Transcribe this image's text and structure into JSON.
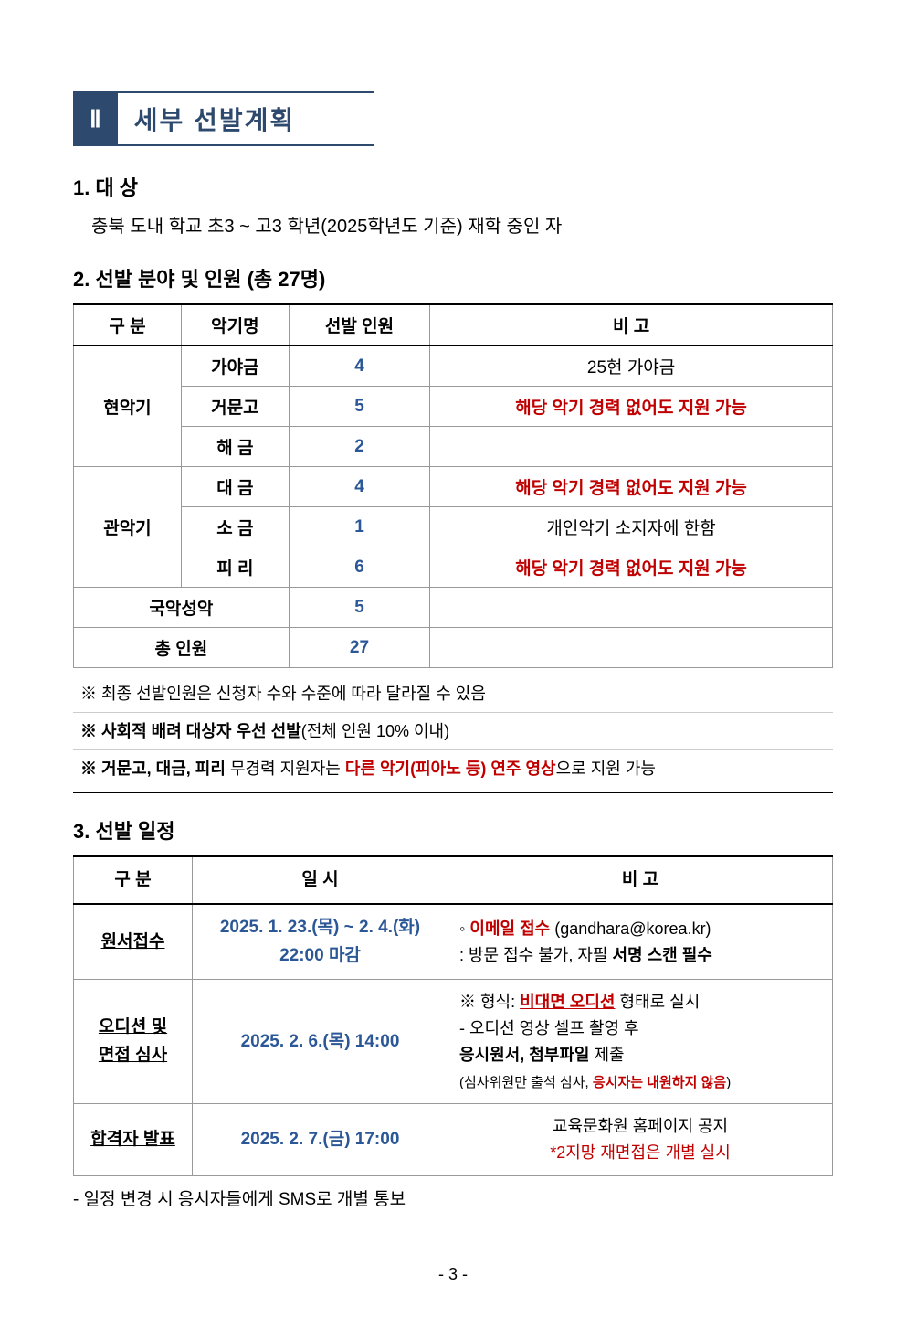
{
  "header": {
    "roman": "Ⅱ",
    "title": "세부 선발계획"
  },
  "section1": {
    "title": "1. 대 상",
    "text": "충북 도내 학교 초3 ~ 고3 학년(2025학년도 기준) 재학 중인 자"
  },
  "section2": {
    "title": "2. 선발 분야 및 인원 (총 27명)",
    "table": {
      "headers": [
        "구  분",
        "악기명",
        "선발 인원",
        "비  고"
      ],
      "categories": [
        {
          "name": "현악기",
          "rowspan": 3
        },
        {
          "name": "관악기",
          "rowspan": 3
        }
      ],
      "rows": [
        {
          "category": "현악기",
          "inst": "가야금",
          "count": "4",
          "note": "25현 가야금",
          "noteRed": false
        },
        {
          "category": "",
          "inst": "거문고",
          "count": "5",
          "note": "해당 악기 경력 없어도 지원 가능",
          "noteRed": true
        },
        {
          "category": "",
          "inst": "해 금",
          "count": "2",
          "note": "",
          "noteRed": false
        },
        {
          "category": "관악기",
          "inst": "대 금",
          "count": "4",
          "note": "해당 악기 경력 없어도 지원 가능",
          "noteRed": true
        },
        {
          "category": "",
          "inst": "소 금",
          "count": "1",
          "note": "개인악기 소지자에 한함",
          "noteRed": false
        },
        {
          "category": "",
          "inst": "피 리",
          "count": "6",
          "note": "해당 악기 경력 없어도 지원 가능",
          "noteRed": true
        }
      ],
      "merged1": {
        "label": "국악성악",
        "count": "5",
        "note": ""
      },
      "merged2": {
        "label": "총 인원",
        "count": "27",
        "note": ""
      }
    },
    "notes": {
      "l1": "※ 최종 선발인원은 신청자 수와 수준에 따라 달라질 수 있음",
      "l2a": "※ 사회적 배려 대상자 우선 선발",
      "l2b": "(전체 인원 10% 이내)",
      "l3a": "※ 거문고, 대금, 피리",
      "l3b": " 무경력 지원자는 ",
      "l3c": "다른 악기(피아노 등) 연주 영상",
      "l3d": "으로 지원 가능"
    }
  },
  "section3": {
    "title": "3. 선발 일정",
    "headers": [
      "구 분",
      "일 시",
      "비 고"
    ],
    "rows": [
      {
        "label": "원서접수",
        "date": "2025. 1. 23.(목) ~ 2. 4.(화)\n22:00 마감",
        "remark": {
          "prefix": "◦ ",
          "red1": "이메일 접수",
          "plain1": " (gandhara@korea.kr)",
          "line2a": ": 방문 접수 불가, 자필 ",
          "line2b": "서명 스캔 필수"
        }
      },
      {
        "label": "오디션 및\n면접 심사",
        "date": "2025. 2. 6.(목) 14:00",
        "remark": {
          "l1a": "※ 형식: ",
          "l1b": "비대면 오디션",
          "l1c": " 형태로 실시",
          "l2": "   - 오디션 영상 셀프 촬영 후",
          "l3a": "     ",
          "l3b": "응시원서, 첨부파일",
          "l3c": " 제출",
          "l4a": "(심사위원만 출석 심사, ",
          "l4b": "응시자는 내원하지 않음",
          "l4c": ")"
        }
      },
      {
        "label": "합격자 발표",
        "date": "2025. 2. 7.(금) 17:00",
        "remark": {
          "l1": "교육문화원 홈페이지 공지",
          "l2": "*2지망 재면접은 개별 실시"
        }
      }
    ],
    "footer": "- 일정 변경 시 응시자들에게 SMS로 개별 통보"
  },
  "pageNumber": "- 3 -",
  "colors": {
    "headerBg": "#2d4a6e",
    "countBlue": "#2b5797",
    "red": "#c00000",
    "black": "#000000"
  }
}
